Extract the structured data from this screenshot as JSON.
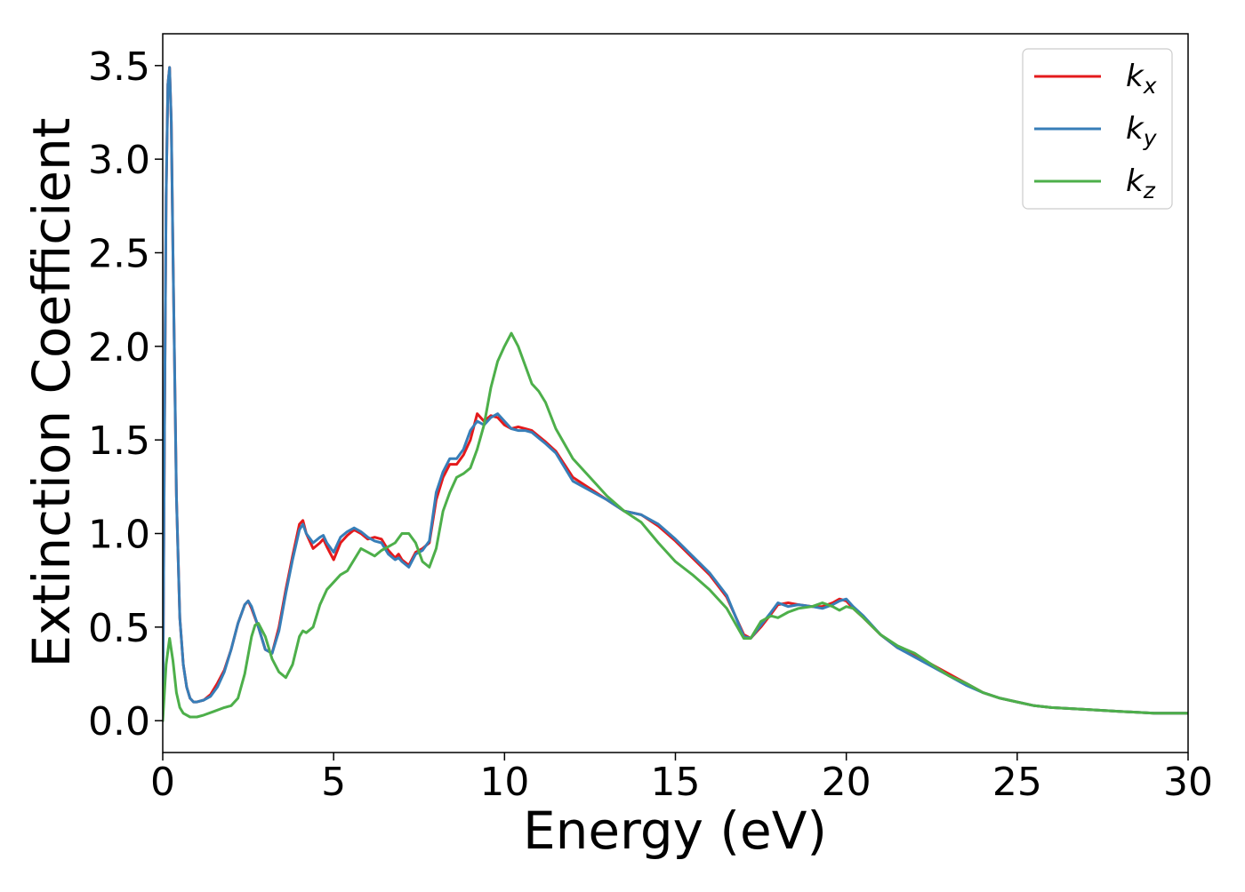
{
  "chart_data": {
    "type": "line",
    "title": "",
    "xlabel": "Energy (eV)",
    "ylabel": "Extinction Coefficient",
    "xlim": [
      0,
      30
    ],
    "ylim": [
      -0.17,
      3.67
    ],
    "xticks": [
      0,
      5,
      10,
      15,
      20,
      25,
      30
    ],
    "xtick_labels": [
      "0",
      "5",
      "10",
      "15",
      "20",
      "25",
      "30"
    ],
    "yticks": [
      0.0,
      0.5,
      1.0,
      1.5,
      2.0,
      2.5,
      3.0,
      3.5
    ],
    "ytick_labels": [
      "0.0",
      "0.5",
      "1.0",
      "1.5",
      "2.0",
      "2.5",
      "3.0",
      "3.5"
    ],
    "grid": false,
    "legend_position": "top-right",
    "series": [
      {
        "name": "k_x",
        "legend_base": "k",
        "legend_sub": "x",
        "color": "#e41a1c",
        "x": [
          0,
          0.05,
          0.1,
          0.15,
          0.2,
          0.25,
          0.3,
          0.4,
          0.5,
          0.6,
          0.7,
          0.8,
          0.9,
          1.0,
          1.2,
          1.4,
          1.6,
          1.8,
          2.0,
          2.2,
          2.4,
          2.5,
          2.6,
          2.8,
          3.0,
          3.2,
          3.4,
          3.6,
          3.8,
          4.0,
          4.1,
          4.2,
          4.4,
          4.6,
          4.7,
          4.8,
          5.0,
          5.2,
          5.4,
          5.6,
          5.8,
          6.0,
          6.2,
          6.4,
          6.6,
          6.8,
          6.9,
          7.0,
          7.2,
          7.4,
          7.6,
          7.8,
          8.0,
          8.2,
          8.4,
          8.6,
          8.8,
          9.0,
          9.2,
          9.4,
          9.6,
          9.8,
          10.0,
          10.2,
          10.4,
          10.6,
          10.8,
          11.0,
          11.2,
          11.5,
          12.0,
          12.5,
          13.0,
          13.5,
          14.0,
          14.5,
          15.0,
          15.5,
          16.0,
          16.5,
          17.0,
          17.2,
          17.5,
          17.8,
          18.0,
          18.3,
          18.6,
          19.0,
          19.3,
          19.6,
          19.8,
          20.0,
          20.2,
          20.5,
          21.0,
          21.5,
          22.0,
          22.5,
          23.0,
          23.5,
          24.0,
          24.5,
          25.0,
          25.5,
          26.0,
          27.0,
          28.0,
          29.0,
          30.0
        ],
        "y": [
          0.0,
          1.5,
          2.8,
          3.4,
          3.49,
          3.2,
          2.5,
          1.2,
          0.55,
          0.3,
          0.18,
          0.12,
          0.1,
          0.1,
          0.11,
          0.14,
          0.2,
          0.27,
          0.38,
          0.52,
          0.62,
          0.64,
          0.6,
          0.5,
          0.38,
          0.36,
          0.5,
          0.7,
          0.88,
          1.05,
          1.07,
          1.0,
          0.92,
          0.95,
          0.97,
          0.93,
          0.86,
          0.95,
          0.99,
          1.02,
          1.0,
          0.97,
          0.98,
          0.97,
          0.91,
          0.87,
          0.89,
          0.86,
          0.83,
          0.9,
          0.92,
          0.95,
          1.18,
          1.3,
          1.37,
          1.37,
          1.42,
          1.5,
          1.64,
          1.6,
          1.63,
          1.62,
          1.58,
          1.56,
          1.57,
          1.56,
          1.55,
          1.52,
          1.49,
          1.44,
          1.3,
          1.24,
          1.18,
          1.12,
          1.1,
          1.04,
          0.96,
          0.87,
          0.78,
          0.66,
          0.46,
          0.44,
          0.5,
          0.57,
          0.62,
          0.63,
          0.62,
          0.61,
          0.61,
          0.63,
          0.65,
          0.64,
          0.6,
          0.55,
          0.46,
          0.39,
          0.35,
          0.3,
          0.25,
          0.2,
          0.15,
          0.12,
          0.1,
          0.08,
          0.07,
          0.06,
          0.05,
          0.04,
          0.04
        ]
      },
      {
        "name": "k_y",
        "legend_base": "k",
        "legend_sub": "y",
        "color": "#377eb8",
        "x": [
          0,
          0.05,
          0.1,
          0.15,
          0.2,
          0.25,
          0.3,
          0.4,
          0.5,
          0.6,
          0.7,
          0.8,
          0.9,
          1.0,
          1.2,
          1.4,
          1.6,
          1.8,
          2.0,
          2.2,
          2.4,
          2.5,
          2.6,
          2.8,
          3.0,
          3.2,
          3.4,
          3.6,
          3.8,
          4.0,
          4.1,
          4.2,
          4.4,
          4.6,
          4.7,
          4.8,
          5.0,
          5.2,
          5.4,
          5.6,
          5.8,
          6.0,
          6.2,
          6.4,
          6.6,
          6.8,
          6.9,
          7.0,
          7.2,
          7.4,
          7.6,
          7.8,
          8.0,
          8.2,
          8.4,
          8.6,
          8.8,
          9.0,
          9.2,
          9.4,
          9.6,
          9.8,
          10.0,
          10.2,
          10.4,
          10.6,
          10.8,
          11.0,
          11.2,
          11.5,
          12.0,
          12.5,
          13.0,
          13.5,
          14.0,
          14.5,
          15.0,
          15.5,
          16.0,
          16.5,
          17.0,
          17.2,
          17.5,
          17.8,
          18.0,
          18.3,
          18.6,
          19.0,
          19.3,
          19.6,
          19.8,
          20.0,
          20.2,
          20.5,
          21.0,
          21.5,
          22.0,
          22.5,
          23.0,
          23.5,
          24.0,
          24.5,
          25.0,
          25.5,
          26.0,
          27.0,
          28.0,
          29.0,
          30.0
        ],
        "y": [
          0.0,
          1.5,
          2.8,
          3.4,
          3.49,
          3.2,
          2.5,
          1.2,
          0.55,
          0.3,
          0.18,
          0.12,
          0.1,
          0.1,
          0.11,
          0.13,
          0.18,
          0.26,
          0.38,
          0.52,
          0.62,
          0.64,
          0.61,
          0.5,
          0.38,
          0.36,
          0.48,
          0.68,
          0.86,
          1.02,
          1.05,
          1.0,
          0.95,
          0.98,
          0.99,
          0.95,
          0.9,
          0.98,
          1.01,
          1.03,
          1.01,
          0.98,
          0.96,
          0.95,
          0.89,
          0.86,
          0.87,
          0.85,
          0.82,
          0.89,
          0.91,
          0.96,
          1.22,
          1.33,
          1.4,
          1.4,
          1.45,
          1.55,
          1.6,
          1.58,
          1.62,
          1.64,
          1.6,
          1.56,
          1.55,
          1.55,
          1.54,
          1.51,
          1.48,
          1.43,
          1.28,
          1.23,
          1.18,
          1.12,
          1.1,
          1.05,
          0.97,
          0.88,
          0.79,
          0.67,
          0.45,
          0.44,
          0.51,
          0.58,
          0.63,
          0.61,
          0.62,
          0.61,
          0.6,
          0.62,
          0.64,
          0.65,
          0.61,
          0.56,
          0.46,
          0.39,
          0.34,
          0.29,
          0.24,
          0.19,
          0.15,
          0.12,
          0.1,
          0.08,
          0.07,
          0.06,
          0.05,
          0.04,
          0.04
        ]
      },
      {
        "name": "k_z",
        "legend_base": "k",
        "legend_sub": "z",
        "color": "#4daf4a",
        "x": [
          0,
          0.1,
          0.2,
          0.3,
          0.4,
          0.5,
          0.6,
          0.8,
          1.0,
          1.2,
          1.5,
          1.8,
          2.0,
          2.2,
          2.4,
          2.6,
          2.7,
          2.8,
          3.0,
          3.2,
          3.4,
          3.6,
          3.8,
          4.0,
          4.1,
          4.2,
          4.4,
          4.6,
          4.8,
          5.0,
          5.2,
          5.4,
          5.6,
          5.8,
          6.0,
          6.2,
          6.4,
          6.6,
          6.8,
          7.0,
          7.2,
          7.4,
          7.6,
          7.8,
          8.0,
          8.2,
          8.4,
          8.6,
          8.8,
          9.0,
          9.2,
          9.4,
          9.6,
          9.8,
          10.0,
          10.2,
          10.4,
          10.6,
          10.8,
          11.0,
          11.2,
          11.5,
          12.0,
          12.5,
          13.0,
          13.5,
          14.0,
          14.5,
          15.0,
          15.5,
          16.0,
          16.5,
          17.0,
          17.2,
          17.5,
          17.8,
          18.0,
          18.3,
          18.6,
          19.0,
          19.3,
          19.6,
          19.8,
          20.0,
          20.2,
          20.5,
          21.0,
          21.5,
          22.0,
          22.5,
          23.0,
          23.5,
          24.0,
          24.5,
          25.0,
          25.5,
          26.0,
          27.0,
          28.0,
          29.0,
          30.0
        ],
        "y": [
          0.0,
          0.3,
          0.44,
          0.32,
          0.15,
          0.07,
          0.04,
          0.02,
          0.02,
          0.03,
          0.05,
          0.07,
          0.08,
          0.12,
          0.25,
          0.45,
          0.51,
          0.52,
          0.45,
          0.33,
          0.26,
          0.23,
          0.3,
          0.45,
          0.48,
          0.47,
          0.5,
          0.62,
          0.7,
          0.74,
          0.78,
          0.8,
          0.86,
          0.92,
          0.9,
          0.88,
          0.91,
          0.93,
          0.95,
          1.0,
          1.0,
          0.95,
          0.85,
          0.82,
          0.92,
          1.12,
          1.22,
          1.3,
          1.32,
          1.35,
          1.45,
          1.58,
          1.78,
          1.92,
          2.0,
          2.07,
          2.0,
          1.9,
          1.8,
          1.76,
          1.7,
          1.56,
          1.4,
          1.3,
          1.2,
          1.12,
          1.06,
          0.95,
          0.85,
          0.78,
          0.7,
          0.6,
          0.44,
          0.44,
          0.53,
          0.56,
          0.55,
          0.58,
          0.6,
          0.61,
          0.63,
          0.61,
          0.59,
          0.61,
          0.6,
          0.55,
          0.46,
          0.4,
          0.36,
          0.3,
          0.24,
          0.2,
          0.15,
          0.12,
          0.1,
          0.08,
          0.07,
          0.06,
          0.05,
          0.04,
          0.04
        ]
      }
    ]
  }
}
